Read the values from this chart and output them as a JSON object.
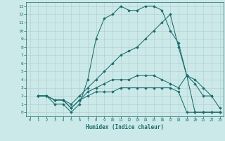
{
  "xlabel": "Humidex (Indice chaleur)",
  "bg_color": "#cce9e9",
  "line_color": "#1a6b6b",
  "grid_color": "#b0cccc",
  "xlim": [
    -0.5,
    23.5
  ],
  "ylim": [
    -0.5,
    13.5
  ],
  "xticks": [
    0,
    1,
    2,
    3,
    4,
    5,
    6,
    7,
    8,
    9,
    10,
    11,
    12,
    13,
    14,
    15,
    16,
    17,
    18,
    19,
    20,
    21,
    22,
    23
  ],
  "yticks": [
    0,
    1,
    2,
    3,
    4,
    5,
    6,
    7,
    8,
    9,
    10,
    11,
    12,
    13
  ],
  "lines": [
    {
      "x": [
        1,
        2,
        3,
        4,
        5,
        6,
        7,
        8,
        9,
        10,
        11,
        12,
        13,
        14,
        15,
        16,
        17,
        18,
        19,
        20,
        21,
        22
      ],
      "y": [
        2,
        2,
        1,
        1,
        0,
        1,
        4,
        9,
        11.5,
        12,
        13,
        12.5,
        12.5,
        13,
        13,
        12.5,
        10,
        8.5,
        4.5,
        3.5,
        2,
        2
      ]
    },
    {
      "x": [
        1,
        2,
        3,
        4,
        5,
        6,
        7,
        8,
        9,
        10,
        11,
        12,
        13,
        14,
        15,
        16,
        17,
        18,
        19,
        20,
        21,
        22,
        23
      ],
      "y": [
        2,
        2,
        1.5,
        1.5,
        1,
        2,
        3,
        4,
        5,
        6,
        7,
        7.5,
        8,
        9,
        10,
        11,
        12,
        8,
        4.5,
        0,
        0,
        0,
        0
      ]
    },
    {
      "x": [
        1,
        2,
        3,
        4,
        5,
        6,
        7,
        8,
        9,
        10,
        11,
        12,
        13,
        14,
        15,
        16,
        17,
        18,
        19,
        20,
        21,
        22,
        23
      ],
      "y": [
        2,
        2,
        1.5,
        1.5,
        0.5,
        1.5,
        2.5,
        3,
        3.5,
        4,
        4,
        4,
        4.5,
        4.5,
        4.5,
        4,
        3.5,
        3,
        4.5,
        4,
        3,
        2,
        0.5
      ]
    },
    {
      "x": [
        1,
        2,
        3,
        4,
        5,
        6,
        7,
        8,
        9,
        10,
        11,
        12,
        13,
        14,
        15,
        16,
        17,
        18,
        19,
        20,
        21,
        22,
        23
      ],
      "y": [
        2,
        2,
        1.5,
        1.5,
        0.5,
        1.5,
        2,
        2.5,
        2.5,
        2.5,
        3,
        3,
        3,
        3,
        3,
        3,
        3,
        2.5,
        0,
        0,
        0,
        0,
        0
      ]
    }
  ]
}
